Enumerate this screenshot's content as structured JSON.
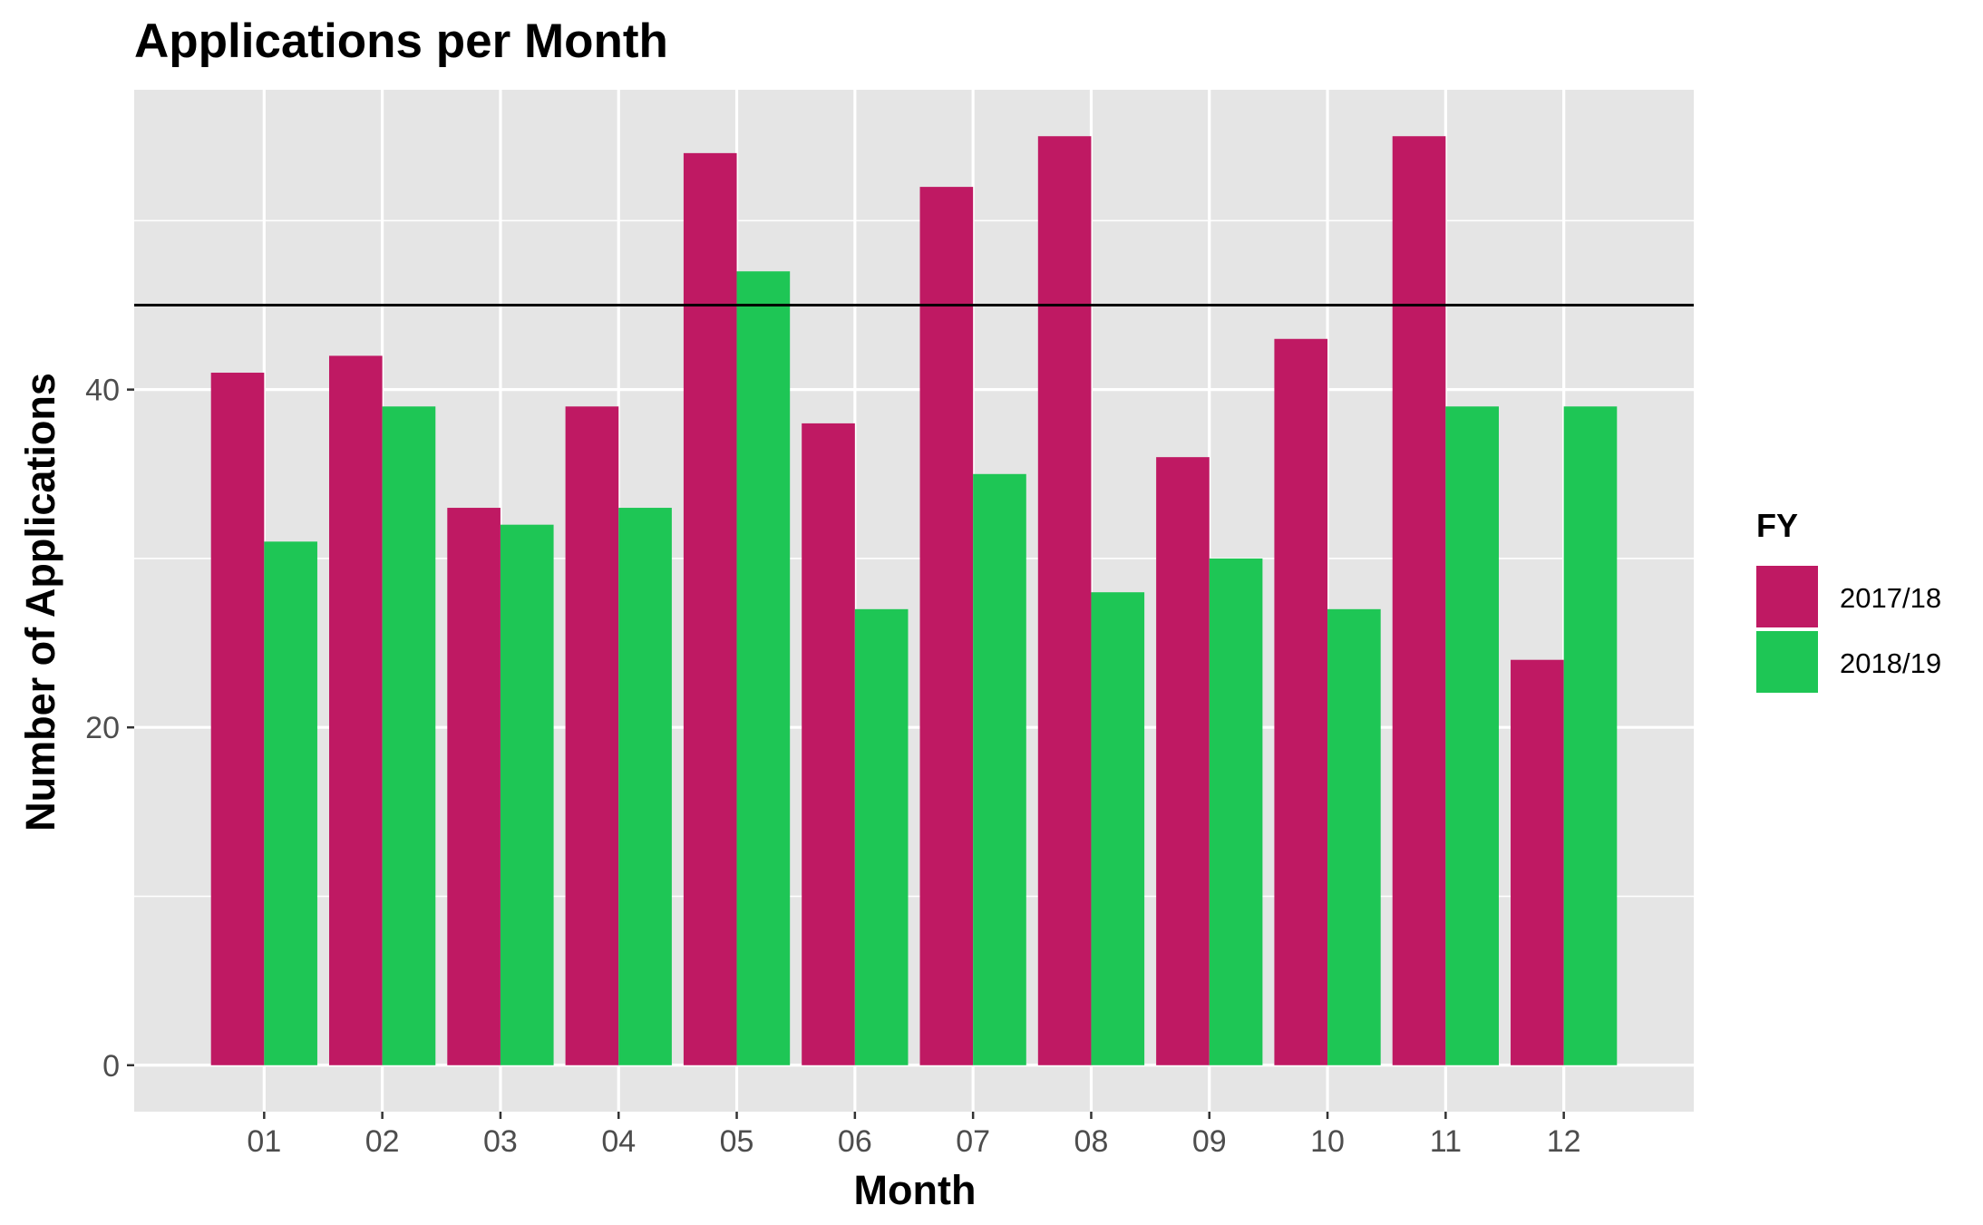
{
  "chart_data": {
    "type": "bar",
    "title": "Applications per Month",
    "xlabel": "Month",
    "ylabel": "Number of Applications",
    "categories": [
      "01",
      "02",
      "03",
      "04",
      "05",
      "06",
      "07",
      "08",
      "09",
      "10",
      "11",
      "12"
    ],
    "series": [
      {
        "name": "2017/18",
        "color": "#BF1963",
        "values": [
          41,
          42,
          33,
          39,
          54,
          38,
          52,
          55,
          36,
          43,
          55,
          24
        ]
      },
      {
        "name": "2018/19",
        "color": "#1EC655",
        "values": [
          31,
          39,
          32,
          33,
          47,
          27,
          35,
          28,
          30,
          27,
          39,
          39
        ]
      }
    ],
    "reference_line": 45,
    "ylim": [
      -2.75,
      57.75
    ],
    "yticks": [
      0,
      20,
      40
    ],
    "grid": true,
    "legend": {
      "title": "FY",
      "position": "right"
    },
    "panel_background": "#E5E5E5",
    "grid_color": "#FFFFFF"
  }
}
